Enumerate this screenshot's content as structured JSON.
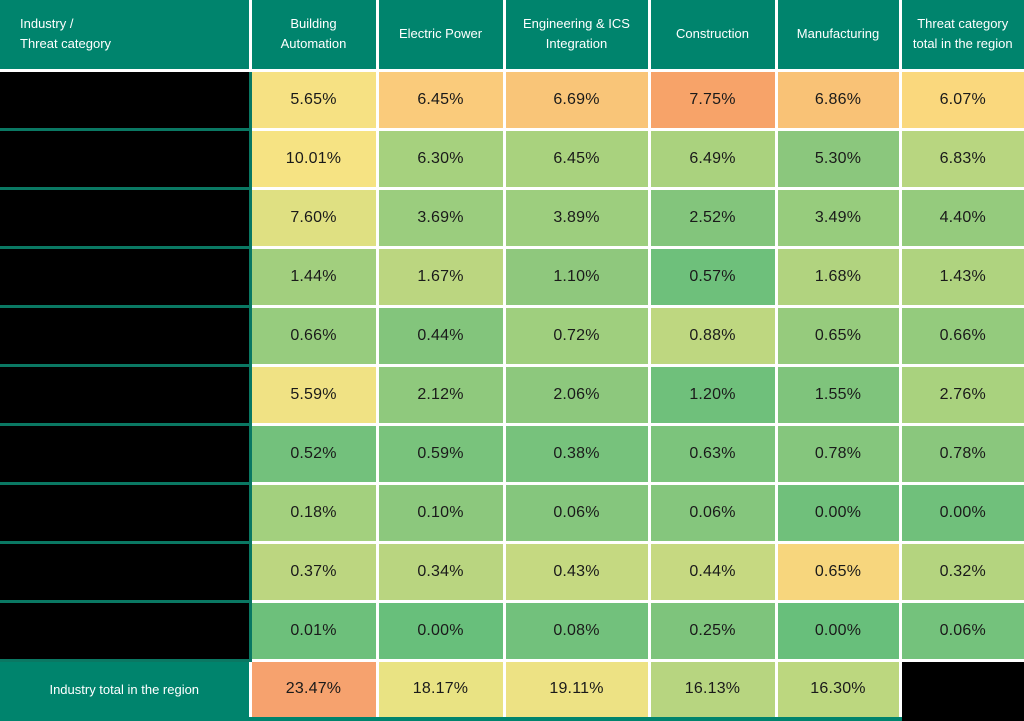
{
  "colors": {
    "teal_header": "#00846D",
    "grid_line": "#FFFFFF",
    "redaction_black": "#000000",
    "redaction_rim_teal": "#0A7863",
    "cell_text": "#1A1A1A",
    "header_text": "#FFFFFF"
  },
  "table": {
    "corner_header": "Industry /\nThreat category",
    "columns": [
      "Building Automation",
      "Electric Power",
      "Engineering & ICS Integration",
      "Construction",
      "Manufacturing",
      "Threat category total in the region"
    ],
    "rows": [
      {
        "redacted_label": true,
        "values": [
          "5.65%",
          "6.45%",
          "6.69%",
          "7.75%",
          "6.86%",
          "6.07%"
        ],
        "colors": [
          "#F6E183",
          "#FACB7B",
          "#F9C578",
          "#F7A369",
          "#F9C276",
          "#FAD87D"
        ]
      },
      {
        "redacted_label": true,
        "values": [
          "10.01%",
          "6.30%",
          "6.45%",
          "6.49%",
          "5.30%",
          "6.83%"
        ],
        "colors": [
          "#F6E383",
          "#A6D17E",
          "#A9D27E",
          "#AAD27E",
          "#8BC77D",
          "#B8D680"
        ]
      },
      {
        "redacted_label": true,
        "values": [
          "7.60%",
          "3.69%",
          "3.89%",
          "2.52%",
          "3.49%",
          "4.40%"
        ],
        "colors": [
          "#DFE082",
          "#9BCD7E",
          "#9DCE7E",
          "#83C57C",
          "#97CC7D",
          "#95CB7D"
        ]
      },
      {
        "redacted_label": true,
        "values": [
          "1.44%",
          "1.67%",
          "1.10%",
          "0.57%",
          "1.68%",
          "1.43%"
        ],
        "colors": [
          "#A2CF7E",
          "#BBD680",
          "#8FC87D",
          "#6EC07B",
          "#B1D37F",
          "#AFD37F"
        ]
      },
      {
        "redacted_label": true,
        "values": [
          "0.66%",
          "0.44%",
          "0.72%",
          "0.88%",
          "0.65%",
          "0.66%"
        ],
        "colors": [
          "#97CC7E",
          "#83C57C",
          "#9FCF7E",
          "#BED780",
          "#96CB7D",
          "#94CB7D"
        ]
      },
      {
        "redacted_label": true,
        "values": [
          "5.59%",
          "2.12%",
          "2.06%",
          "1.20%",
          "1.55%",
          "2.76%"
        ],
        "colors": [
          "#F0E284",
          "#8FC97D",
          "#8DC87D",
          "#6FC07B",
          "#7FC47C",
          "#A9D27E"
        ]
      },
      {
        "redacted_label": true,
        "values": [
          "0.52%",
          "0.59%",
          "0.38%",
          "0.63%",
          "0.78%",
          "0.78%"
        ],
        "colors": [
          "#73C17C",
          "#79C37C",
          "#77C27C",
          "#7CC47C",
          "#85C67D",
          "#8AC77D"
        ]
      },
      {
        "redacted_label": true,
        "values": [
          "0.18%",
          "0.10%",
          "0.06%",
          "0.06%",
          "0.00%",
          "0.00%"
        ],
        "colors": [
          "#A3D07E",
          "#8CC87D",
          "#85C67D",
          "#85C67D",
          "#70C07B",
          "#70C07B"
        ]
      },
      {
        "redacted_label": true,
        "values": [
          "0.37%",
          "0.34%",
          "0.43%",
          "0.44%",
          "0.65%",
          "0.32%"
        ],
        "colors": [
          "#BCD680",
          "#B9D580",
          "#C5D981",
          "#C6D981",
          "#F7D67D",
          "#B4D47F"
        ]
      },
      {
        "redacted_label": true,
        "values": [
          "0.01%",
          "0.00%",
          "0.08%",
          "0.25%",
          "0.00%",
          "0.06%"
        ],
        "colors": [
          "#6DC07B",
          "#68BF7B",
          "#72C17C",
          "#7EC47C",
          "#68BF7B",
          "#74C27C"
        ]
      }
    ],
    "total_row": {
      "label": "Industry total in the region",
      "values": [
        "23.47%",
        "18.17%",
        "19.11%",
        "16.13%",
        "16.30%"
      ],
      "colors": [
        "#F6A26E",
        "#E9E383",
        "#EDE284",
        "#B7D580",
        "#BCD77F"
      ],
      "last_cell_redacted": true
    }
  },
  "chart_data": {
    "type": "heatmap",
    "title": "",
    "columns": [
      "Building Automation",
      "Electric Power",
      "Engineering & ICS Integration",
      "Construction",
      "Manufacturing",
      "Threat category total in the region"
    ],
    "row_labels": "redacted (blacked out in source image)",
    "rows": [
      [
        5.65,
        6.45,
        6.69,
        7.75,
        6.86,
        6.07
      ],
      [
        10.01,
        6.3,
        6.45,
        6.49,
        5.3,
        6.83
      ],
      [
        7.6,
        3.69,
        3.89,
        2.52,
        3.49,
        4.4
      ],
      [
        1.44,
        1.67,
        1.1,
        0.57,
        1.68,
        1.43
      ],
      [
        0.66,
        0.44,
        0.72,
        0.88,
        0.65,
        0.66
      ],
      [
        5.59,
        2.12,
        2.06,
        1.2,
        1.55,
        2.76
      ],
      [
        0.52,
        0.59,
        0.38,
        0.63,
        0.78,
        0.78
      ],
      [
        0.18,
        0.1,
        0.06,
        0.06,
        0.0,
        0.0
      ],
      [
        0.37,
        0.34,
        0.43,
        0.44,
        0.65,
        0.32
      ],
      [
        0.01,
        0.0,
        0.08,
        0.25,
        0.0,
        0.06
      ]
    ],
    "totals_row": {
      "label": "Industry total in the region",
      "values": [
        23.47,
        18.17,
        19.11,
        16.13,
        16.3,
        null
      ]
    },
    "unit": "%",
    "color_scale": "green (#63BE7B) -> yellow (#FFEB84) -> orange (#F8A26C), per-cell conditional formatting",
    "legend_position": "none",
    "grid": "white gridlines between cells"
  }
}
